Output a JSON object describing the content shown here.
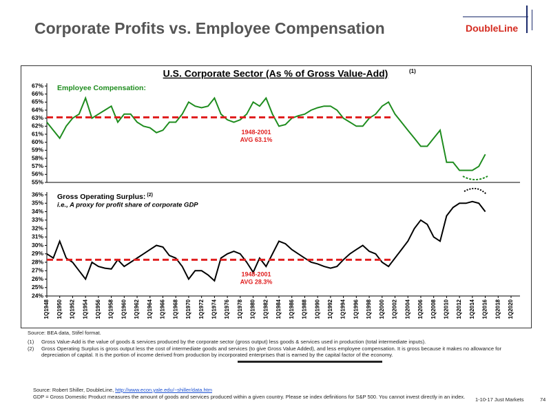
{
  "header": {
    "title": "Corporate Profits vs. Employee Compensation",
    "logo": "DoubleLine"
  },
  "panel": {
    "title": "U.S. Corporate Sector (As % of Gross Value-Add)",
    "title_note": "(1)"
  },
  "chart_data": [
    {
      "type": "line",
      "title": "Employee Compensation:",
      "x": [
        1948,
        1949,
        1950,
        1951,
        1952,
        1953,
        1954,
        1955,
        1956,
        1957,
        1958,
        1959,
        1960,
        1961,
        1962,
        1963,
        1964,
        1965,
        1966,
        1967,
        1968,
        1969,
        1970,
        1971,
        1972,
        1973,
        1974,
        1975,
        1976,
        1977,
        1978,
        1979,
        1980,
        1981,
        1982,
        1983,
        1984,
        1985,
        1986,
        1987,
        1988,
        1989,
        1990,
        1991,
        1992,
        1993,
        1994,
        1995,
        1996,
        1997,
        1998,
        1999,
        2000,
        2001,
        2002,
        2003,
        2004,
        2005,
        2006,
        2007,
        2008,
        2009,
        2010,
        2011,
        2012,
        2013,
        2014,
        2015,
        2016
      ],
      "series": [
        {
          "color": "#1e8c1e",
          "values": [
            62.5,
            61.5,
            60.5,
            62,
            63,
            63.5,
            65.5,
            63,
            63.5,
            64,
            64.5,
            62.5,
            63.5,
            63.5,
            62.5,
            62,
            61.8,
            61.2,
            61.5,
            62.5,
            62.5,
            63.5,
            65,
            64.5,
            64.3,
            64.5,
            65.5,
            63.5,
            62.8,
            62.5,
            62.8,
            63.5,
            65,
            64.5,
            65.5,
            63.5,
            62,
            62.2,
            63,
            63.3,
            63.5,
            64,
            64.3,
            64.5,
            64.5,
            64,
            63,
            62.5,
            62,
            62,
            63,
            63.5,
            64.5,
            65,
            63.5,
            62.5,
            61.5,
            60.5,
            59.5,
            59.5,
            60.5,
            61.5,
            57.5,
            57.5,
            56.5,
            56.5,
            56.5,
            57,
            58.5
          ]
        }
      ],
      "average": 63.1,
      "average_period": "1948-2001",
      "average_label": "AVG 63.1%",
      "average_color": "#e02020",
      "xlim": [
        1948,
        2020
      ],
      "ylim": [
        55,
        67
      ],
      "yticks": [
        {
          "value": 55,
          "label": "55%"
        },
        {
          "value": 56,
          "label": "56%"
        },
        {
          "value": 57,
          "label": "57%"
        },
        {
          "value": 58,
          "label": "58%"
        },
        {
          "value": 59,
          "label": "59%"
        },
        {
          "value": 60,
          "label": "60%"
        },
        {
          "value": 61,
          "label": "61%"
        },
        {
          "value": 62,
          "label": "62%"
        },
        {
          "value": 63,
          "label": "63%"
        },
        {
          "value": 64,
          "label": "64%"
        },
        {
          "value": 65,
          "label": "65%"
        },
        {
          "value": 66,
          "label": "66%"
        },
        {
          "value": 67,
          "label": "67%"
        }
      ]
    },
    {
      "type": "line",
      "title": "Gross Operating Surplus:",
      "title_note": "(2)",
      "subtitle": "i.e., A proxy for profit share of corporate GDP",
      "x": [
        1948,
        1949,
        1950,
        1951,
        1952,
        1953,
        1954,
        1955,
        1956,
        1957,
        1958,
        1959,
        1960,
        1961,
        1962,
        1963,
        1964,
        1965,
        1966,
        1967,
        1968,
        1969,
        1970,
        1971,
        1972,
        1973,
        1974,
        1975,
        1976,
        1977,
        1978,
        1979,
        1980,
        1981,
        1982,
        1983,
        1984,
        1985,
        1986,
        1987,
        1988,
        1989,
        1990,
        1991,
        1992,
        1993,
        1994,
        1995,
        1996,
        1997,
        1998,
        1999,
        2000,
        2001,
        2002,
        2003,
        2004,
        2005,
        2006,
        2007,
        2008,
        2009,
        2010,
        2011,
        2012,
        2013,
        2014,
        2015,
        2016
      ],
      "series": [
        {
          "color": "#000000",
          "values": [
            29,
            28.5,
            30.5,
            28.5,
            28,
            27,
            26,
            28,
            27.5,
            27.3,
            27.2,
            28.3,
            27.5,
            28,
            28.5,
            29,
            29.5,
            30,
            29.8,
            28.8,
            28.5,
            27.5,
            26,
            27,
            27,
            26.5,
            25.8,
            28.5,
            29,
            29.3,
            29,
            28,
            26.8,
            28.5,
            27.5,
            29,
            30.5,
            30.2,
            29.5,
            29,
            28.5,
            28,
            27.8,
            27.5,
            27.3,
            27.5,
            28.3,
            29,
            29.5,
            30,
            29.3,
            29,
            28,
            27.5,
            28.5,
            29.5,
            30.5,
            32,
            33,
            32.5,
            31,
            30.5,
            33.5,
            34.5,
            35,
            35,
            35.2,
            35,
            34
          ]
        }
      ],
      "average": 28.3,
      "average_period": "1948-2001",
      "average_label": "AVG 28.3%",
      "average_color": "#e02020",
      "xlim": [
        1948,
        2020
      ],
      "ylim": [
        24,
        36
      ],
      "yticks": [
        {
          "value": 24,
          "label": "24%"
        },
        {
          "value": 25,
          "label": "25%"
        },
        {
          "value": 26,
          "label": "26%"
        },
        {
          "value": 27,
          "label": "27%"
        },
        {
          "value": 28,
          "label": "28%"
        },
        {
          "value": 29,
          "label": "29%"
        },
        {
          "value": 30,
          "label": "30%"
        },
        {
          "value": 31,
          "label": "31%"
        },
        {
          "value": 32,
          "label": "32%"
        },
        {
          "value": 33,
          "label": "33%"
        },
        {
          "value": 34,
          "label": "34%"
        },
        {
          "value": 35,
          "label": "35%"
        },
        {
          "value": 36,
          "label": "36%"
        }
      ],
      "xticks": [
        {
          "value": 1948,
          "label": "1Q1948"
        },
        {
          "value": 1950,
          "label": "1Q1950"
        },
        {
          "value": 1952,
          "label": "1Q1952"
        },
        {
          "value": 1954,
          "label": "1Q1954"
        },
        {
          "value": 1956,
          "label": "1Q1956"
        },
        {
          "value": 1958,
          "label": "1Q1958"
        },
        {
          "value": 1960,
          "label": "1Q1960"
        },
        {
          "value": 1962,
          "label": "1Q1962"
        },
        {
          "value": 1964,
          "label": "1Q1964"
        },
        {
          "value": 1966,
          "label": "1Q1966"
        },
        {
          "value": 1968,
          "label": "1Q1968"
        },
        {
          "value": 1970,
          "label": "1Q1970"
        },
        {
          "value": 1972,
          "label": "1Q1972"
        },
        {
          "value": 1974,
          "label": "1Q1974"
        },
        {
          "value": 1976,
          "label": "1Q1976"
        },
        {
          "value": 1978,
          "label": "1Q1978"
        },
        {
          "value": 1980,
          "label": "1Q1980"
        },
        {
          "value": 1982,
          "label": "1Q1982"
        },
        {
          "value": 1984,
          "label": "1Q1984"
        },
        {
          "value": 1986,
          "label": "1Q1986"
        },
        {
          "value": 1988,
          "label": "1Q1988"
        },
        {
          "value": 1990,
          "label": "1Q1990"
        },
        {
          "value": 1992,
          "label": "1Q1992"
        },
        {
          "value": 1994,
          "label": "1Q1994"
        },
        {
          "value": 1996,
          "label": "1Q1996"
        },
        {
          "value": 1998,
          "label": "1Q1998"
        },
        {
          "value": 2000,
          "label": "1Q2000"
        },
        {
          "value": 2002,
          "label": "1Q2002"
        },
        {
          "value": 2004,
          "label": "1Q2004"
        },
        {
          "value": 2006,
          "label": "1Q2006"
        },
        {
          "value": 2008,
          "label": "1Q2008"
        },
        {
          "value": 2010,
          "label": "1Q2010"
        },
        {
          "value": 2012,
          "label": "1Q2012"
        },
        {
          "value": 2014,
          "label": "1Q2014"
        },
        {
          "value": 2016,
          "label": "1Q2016"
        },
        {
          "value": 2018,
          "label": "1Q2018"
        },
        {
          "value": 2020,
          "label": "1Q2020"
        }
      ]
    }
  ],
  "notes": {
    "source": "Source: BEA data, Stifel format.",
    "items": [
      {
        "marker": "(1)",
        "text": "Gross Value-Add is the value of goods & services produced by the corporate sector (gross output) less goods & services used in production (total intermediate inputs)."
      },
      {
        "marker": "(2)",
        "text": "Gross Operating Surplus is gross output less the cost of intermediate goods and services (to give Gross Value Added), and less employee compensation. It is gross because it makes no allowance for depreciation of capital. It is the portion of income derived from production by incorporated enterprises that is earned by the capital factor of the economy."
      }
    ]
  },
  "footer": {
    "source": "Source: Robert Shiller, DoubleLine,",
    "link": "http://www.econ.yale.edu/~shiller/data.htm",
    "definition": "GDP = Gross Domestic Product measures the amount of goods and services produced within a given country. Please se index definitions for S&P 500. You cannot invest directly in an index.",
    "date": "1-10-17 Just Markets",
    "page": "74"
  }
}
